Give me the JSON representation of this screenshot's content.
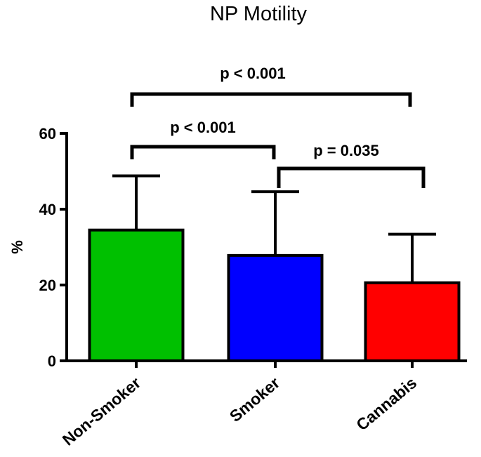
{
  "chart_data": {
    "type": "bar",
    "title": "NP Motility",
    "xlabel": "",
    "ylabel": "%",
    "ylim": [
      0,
      60
    ],
    "yticks": [
      0,
      20,
      40,
      60
    ],
    "grid": false,
    "categories": [
      "Non-Smoker",
      "Smoker",
      "Cannabis"
    ],
    "values": [
      34.5,
      27.8,
      20.6
    ],
    "error_upper": [
      48.8,
      44.6,
      33.4
    ],
    "colors": [
      "#00c000",
      "#0000ff",
      "#ff0000"
    ],
    "comparisons": [
      {
        "from": 0,
        "to": 2,
        "label": "p < 0.001"
      },
      {
        "from": 0,
        "to": 1,
        "label": "p < 0.001"
      },
      {
        "from": 1,
        "to": 2,
        "label": "p = 0.035"
      }
    ]
  }
}
